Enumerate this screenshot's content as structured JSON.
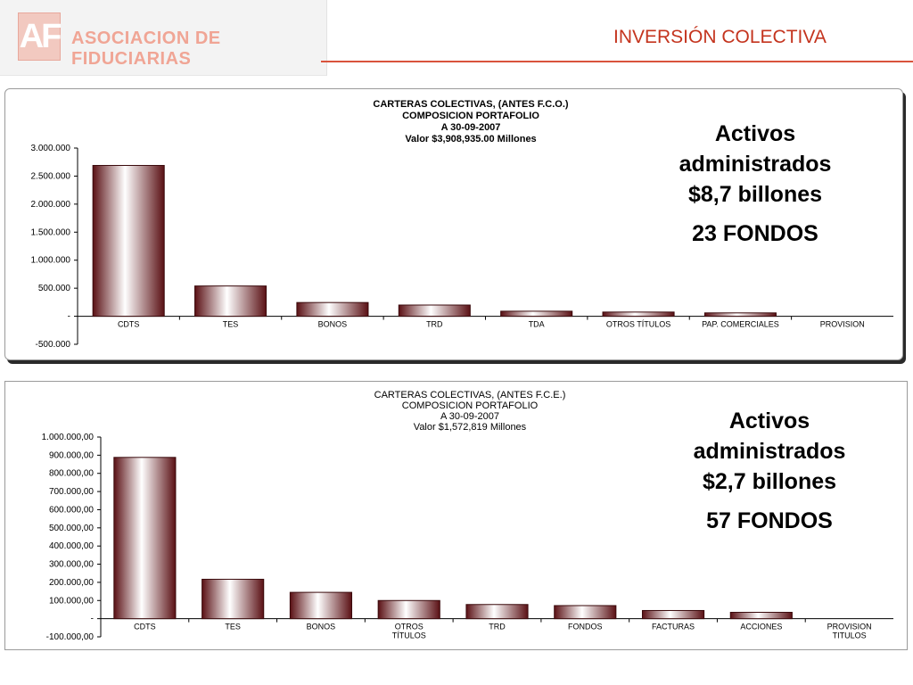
{
  "header": {
    "logo_mark": "AF",
    "logo_text": "ASOCIACION DE FIDUCIARIAS",
    "title": "INVERSIÓN COLECTIVA"
  },
  "panels": [
    {
      "note": {
        "line1": "Activos",
        "line2": "administrados",
        "line3": "$8,7 billones",
        "funds": "23 FONDOS"
      }
    },
    {
      "note": {
        "line1": "Activos",
        "line2": "administrados",
        "line3": "$2,7 billones",
        "funds": "57 FONDOS"
      }
    }
  ],
  "chart_data": [
    {
      "type": "bar",
      "title_lines": [
        "CARTERAS COLECTIVAS, (ANTES F.C.O.)",
        "COMPOSICION PORTAFOLIO",
        "A 30-09-2007",
        "Valor $3,908,935.00 Millones"
      ],
      "categories": [
        [
          "CDTS"
        ],
        [
          "TES"
        ],
        [
          "BONOS"
        ],
        [
          "TRD"
        ],
        [
          "TDA"
        ],
        [
          "OTROS TÍTULOS"
        ],
        [
          "PAP. COMERCIALES"
        ],
        [
          "PROVISION"
        ]
      ],
      "values": [
        2690000,
        540000,
        245000,
        200000,
        90000,
        75000,
        60000,
        0
      ],
      "ylim": [
        -500000,
        3000000
      ],
      "yticks": [
        3000000,
        2500000,
        2000000,
        1500000,
        1000000,
        500000,
        0,
        -500000
      ],
      "ytick_labels": [
        "3.000.000",
        "2.500.000",
        "2.000.000",
        "1.500.000",
        "1.000.000",
        "500.000",
        "-",
        "-500.000"
      ],
      "xlabel": "",
      "ylabel": "",
      "grid": false,
      "legend": "none"
    },
    {
      "type": "bar",
      "title_lines": [
        "CARTERAS COLECTIVAS, (ANTES  F.C.E.)",
        "COMPOSICION PORTAFOLIO",
        "A 30-09-2007",
        "Valor $1,572,819 Millones"
      ],
      "categories": [
        [
          "CDTS"
        ],
        [
          "TES"
        ],
        [
          "BONOS"
        ],
        [
          "OTROS",
          "TÍTULOS"
        ],
        [
          "TRD"
        ],
        [
          "FONDOS"
        ],
        [
          "FACTURAS"
        ],
        [
          "ACCIONES"
        ],
        [
          "PROVISION",
          "TITULOS"
        ]
      ],
      "values": [
        888000,
        217000,
        145000,
        100000,
        78000,
        72000,
        45000,
        35000,
        0
      ],
      "ylim": [
        -100000,
        1000000
      ],
      "yticks": [
        1000000,
        900000,
        800000,
        700000,
        600000,
        500000,
        400000,
        300000,
        200000,
        100000,
        0,
        -100000
      ],
      "ytick_labels": [
        "1.000.000,00",
        "900.000,00",
        "800.000,00",
        "700.000,00",
        "600.000,00",
        "500.000,00",
        "400.000,00",
        "300.000,00",
        "200.000,00",
        "100.000,00",
        "-",
        "-100.000,00"
      ],
      "xlabel": "",
      "ylabel": "",
      "grid": false,
      "legend": "none"
    }
  ]
}
